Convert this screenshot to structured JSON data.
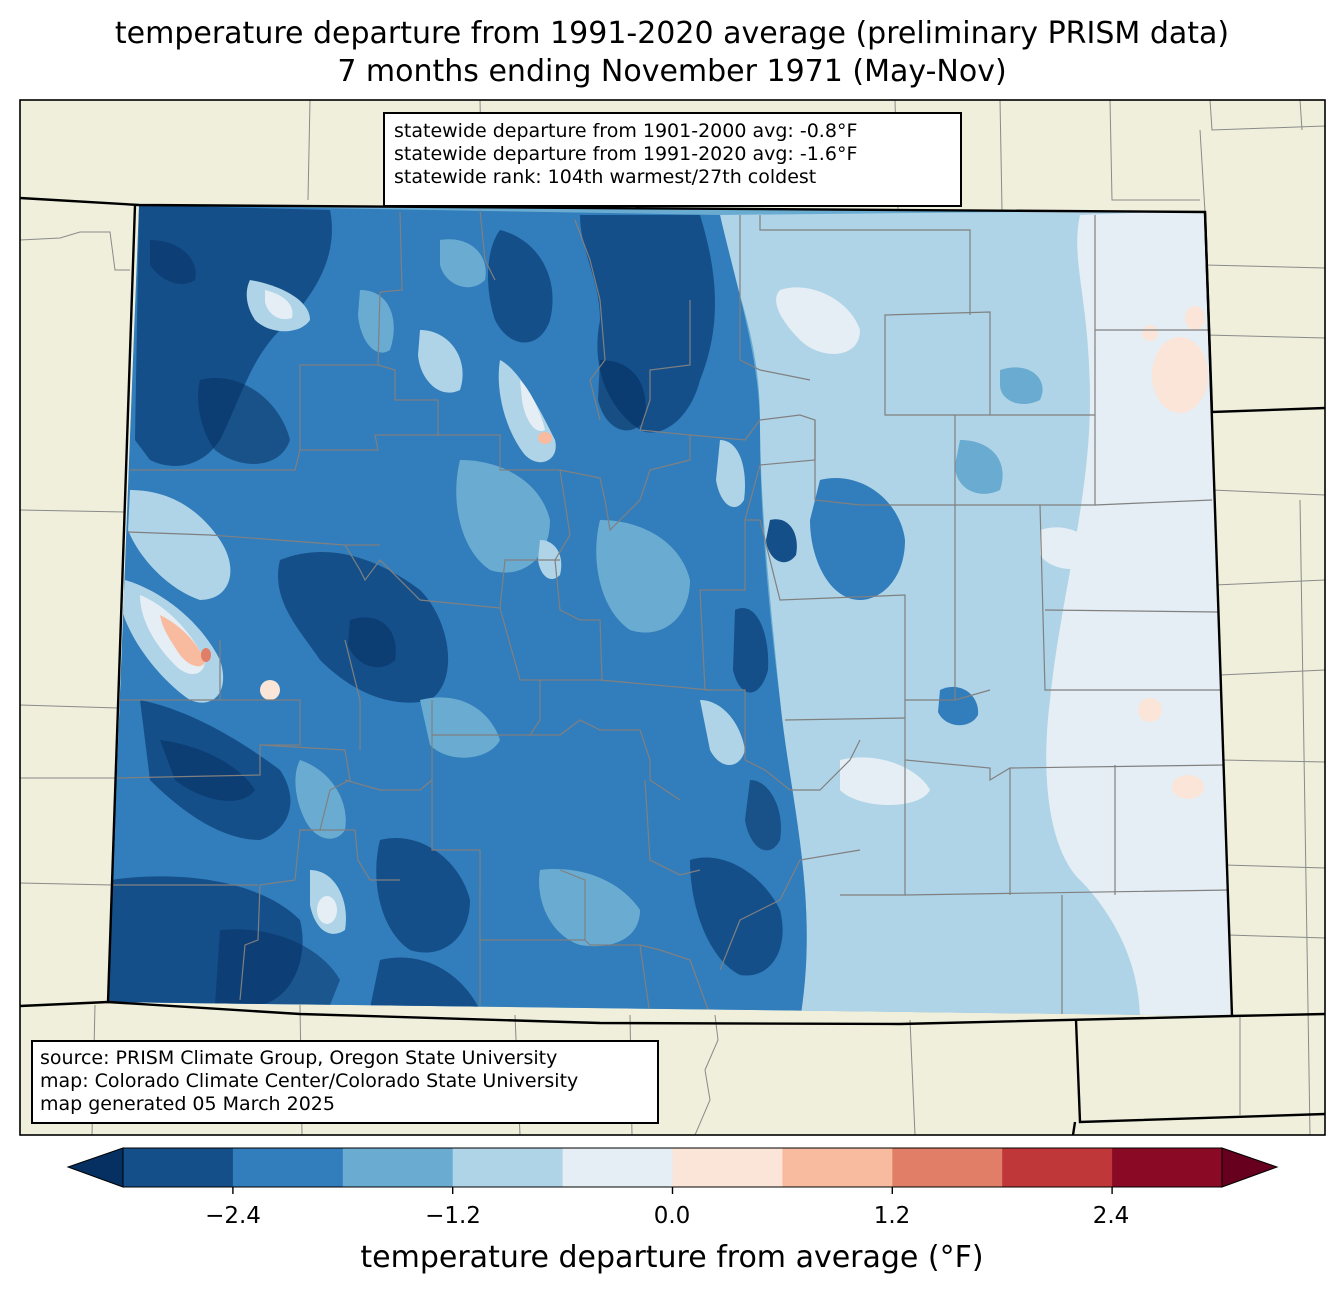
{
  "title": {
    "line1": "temperature departure from 1991-2020 average (preliminary PRISM data)",
    "line2": "7 months ending November 1971 (May-Nov)"
  },
  "stats": {
    "line1": "statewide departure from 1901-2000 avg: -0.8°F",
    "line2": "statewide departure from 1991-2020 avg: -1.6°F",
    "line3": "statewide rank: 104th warmest/27th coldest"
  },
  "credits": {
    "line1": "source: PRISM Climate Group, Oregon State University",
    "line2": "map: Colorado Climate Center/Colorado State University",
    "line3": "map generated 05 March 2025"
  },
  "colorbar": {
    "label": "temperature departure from average (°F)",
    "ticks": [
      "−2.4",
      "−1.2",
      "0.0",
      "1.2",
      "2.4"
    ],
    "tick_values": [
      -2.4,
      -1.2,
      0.0,
      1.2,
      2.4
    ],
    "bounds": [
      -3.0,
      3.0
    ],
    "step": 0.6,
    "under_color": "#053061",
    "over_color": "#67001f",
    "colors": [
      "#144f8a",
      "#327dbb",
      "#6aacd1",
      "#afd4e7",
      "#e5eef4",
      "#fbe5d8",
      "#f8bba0",
      "#e07e68",
      "#c0373a",
      "#8a0a25"
    ]
  },
  "map": {
    "land_color": "#efefdc",
    "state": "Colorado"
  }
}
